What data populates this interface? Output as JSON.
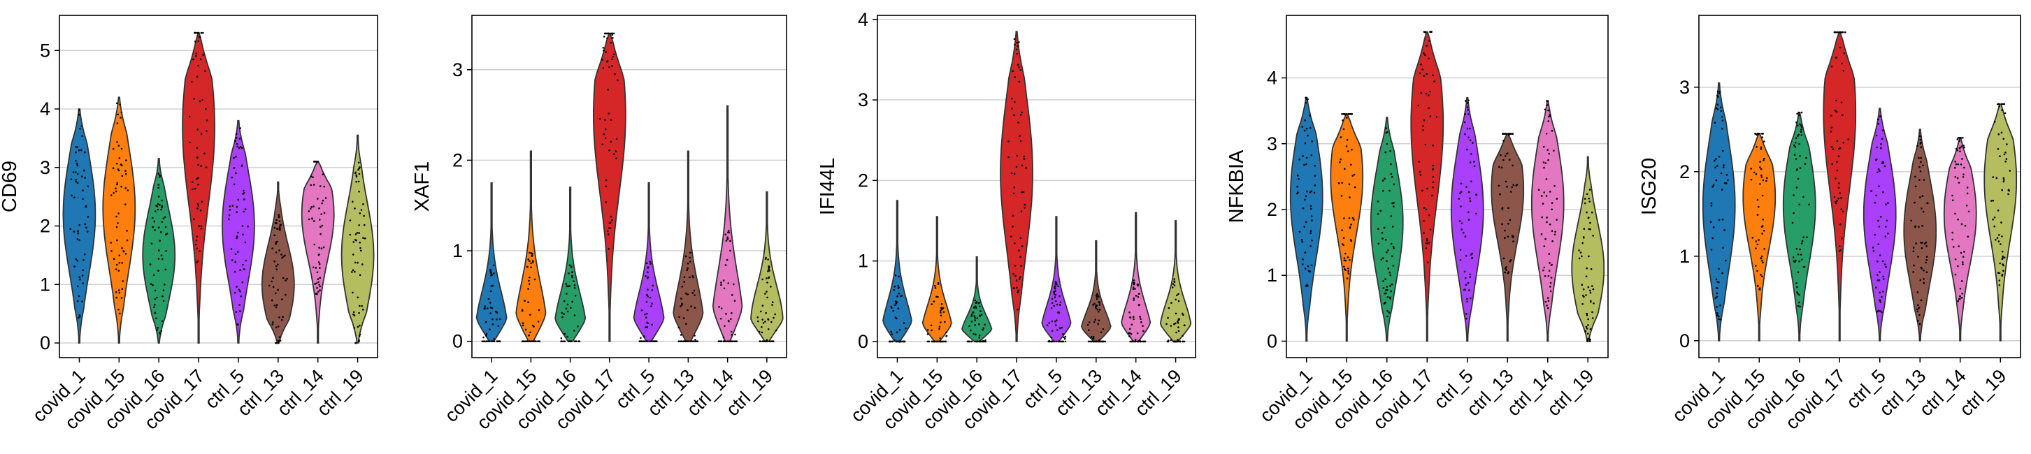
{
  "colors": {
    "covid_1": "#1f77b4",
    "covid_15": "#ff7f0e",
    "covid_16": "#279e68",
    "covid_17": "#d62728",
    "ctrl_5": "#aa40fc",
    "ctrl_13": "#8c564b",
    "ctrl_14": "#e377c2",
    "ctrl_19": "#b5bd61"
  },
  "chart_data": [
    {
      "type": "violin",
      "ylabel": "CD69",
      "categories": [
        "covid_1",
        "covid_15",
        "covid_16",
        "covid_17",
        "ctrl_5",
        "ctrl_13",
        "ctrl_14",
        "ctrl_19"
      ],
      "yticks": [
        0,
        1,
        2,
        3,
        4,
        5
      ],
      "ylim": [
        -0.25,
        5.6
      ],
      "grid": true,
      "series": [
        {
          "category": "covid_1",
          "min": 0,
          "max": 4.0,
          "median": 2.2
        },
        {
          "category": "covid_15",
          "min": 0,
          "max": 4.2,
          "median": 2.3
        },
        {
          "category": "covid_16",
          "min": 0,
          "max": 3.15,
          "median": 1.5
        },
        {
          "category": "covid_17",
          "min": 0,
          "max": 5.3,
          "median": 3.7
        },
        {
          "category": "ctrl_5",
          "min": 0,
          "max": 3.8,
          "median": 2.0
        },
        {
          "category": "ctrl_13",
          "min": 0,
          "max": 2.75,
          "median": 1.0
        },
        {
          "category": "ctrl_14",
          "min": 0,
          "max": 3.1,
          "median": 2.2
        },
        {
          "category": "ctrl_19",
          "min": 0,
          "max": 3.55,
          "median": 1.5
        }
      ]
    },
    {
      "type": "violin",
      "ylabel": "XAF1",
      "categories": [
        "covid_1",
        "covid_15",
        "covid_16",
        "covid_17",
        "ctrl_5",
        "ctrl_13",
        "ctrl_14",
        "ctrl_19"
      ],
      "yticks": [
        0,
        1,
        2,
        3
      ],
      "ylim": [
        -0.18,
        3.6
      ],
      "grid": true,
      "series": [
        {
          "category": "covid_1",
          "min": 0,
          "max": 1.75,
          "median": 0.1
        },
        {
          "category": "covid_15",
          "min": 0,
          "max": 2.1,
          "median": 0.1
        },
        {
          "category": "covid_16",
          "min": 0,
          "max": 1.7,
          "median": 0.1
        },
        {
          "category": "covid_17",
          "min": 0,
          "max": 3.4,
          "median": 2.5
        },
        {
          "category": "ctrl_5",
          "min": 0,
          "max": 1.75,
          "median": 0.1
        },
        {
          "category": "ctrl_13",
          "min": 0,
          "max": 2.1,
          "median": 0.1
        },
        {
          "category": "ctrl_14",
          "min": 0,
          "max": 2.6,
          "median": 0.1
        },
        {
          "category": "ctrl_19",
          "min": 0,
          "max": 1.65,
          "median": 0.2
        }
      ]
    },
    {
      "type": "violin",
      "ylabel": "IFI44L",
      "categories": [
        "covid_1",
        "covid_15",
        "covid_16",
        "covid_17",
        "ctrl_5",
        "ctrl_13",
        "ctrl_14",
        "ctrl_19"
      ],
      "yticks": [
        0,
        1,
        2,
        3,
        4
      ],
      "ylim": [
        -0.2,
        4.05
      ],
      "grid": true,
      "series": [
        {
          "category": "covid_1",
          "min": 0,
          "max": 1.75,
          "median": 0.05
        },
        {
          "category": "covid_15",
          "min": 0,
          "max": 1.55,
          "median": 0.05
        },
        {
          "category": "covid_16",
          "min": 0,
          "max": 1.05,
          "median": 0.05
        },
        {
          "category": "covid_17",
          "min": 0,
          "max": 3.85,
          "median": 2.1
        },
        {
          "category": "ctrl_5",
          "min": 0,
          "max": 1.55,
          "median": 0.05
        },
        {
          "category": "ctrl_13",
          "min": 0,
          "max": 1.25,
          "median": 0.05
        },
        {
          "category": "ctrl_14",
          "min": 0,
          "max": 1.6,
          "median": 0.05
        },
        {
          "category": "ctrl_19",
          "min": 0,
          "max": 1.5,
          "median": 0.1
        }
      ]
    },
    {
      "type": "violin",
      "ylabel": "NFKBIA",
      "categories": [
        "covid_1",
        "covid_15",
        "covid_16",
        "covid_17",
        "ctrl_5",
        "ctrl_13",
        "ctrl_14",
        "ctrl_19"
      ],
      "yticks": [
        0,
        1,
        2,
        3,
        4
      ],
      "ylim": [
        -0.25,
        4.95
      ],
      "grid": true,
      "series": [
        {
          "category": "covid_1",
          "min": 0,
          "max": 3.7,
          "median": 2.2
        },
        {
          "category": "covid_15",
          "min": 0,
          "max": 3.45,
          "median": 2.5
        },
        {
          "category": "covid_16",
          "min": 0,
          "max": 3.4,
          "median": 1.8
        },
        {
          "category": "covid_17",
          "min": 0,
          "max": 4.7,
          "median": 3.3
        },
        {
          "category": "ctrl_5",
          "min": 0,
          "max": 3.7,
          "median": 2.0
        },
        {
          "category": "ctrl_13",
          "min": 0,
          "max": 3.15,
          "median": 2.3
        },
        {
          "category": "ctrl_14",
          "min": 0,
          "max": 3.65,
          "median": 2.1
        },
        {
          "category": "ctrl_19",
          "min": 0,
          "max": 2.8,
          "median": 1.1
        }
      ]
    },
    {
      "type": "violin",
      "ylabel": "ISG20",
      "categories": [
        "covid_1",
        "covid_15",
        "covid_16",
        "covid_17",
        "ctrl_5",
        "ctrl_13",
        "ctrl_14",
        "ctrl_19"
      ],
      "yticks": [
        0,
        1,
        2,
        3
      ],
      "ylim": [
        -0.2,
        3.85
      ],
      "grid": true,
      "series": [
        {
          "category": "covid_1",
          "min": 0,
          "max": 3.05,
          "median": 1.6
        },
        {
          "category": "covid_15",
          "min": 0,
          "max": 2.45,
          "median": 1.7
        },
        {
          "category": "covid_16",
          "min": 0,
          "max": 2.7,
          "median": 1.6
        },
        {
          "category": "covid_17",
          "min": 0,
          "max": 3.65,
          "median": 2.7
        },
        {
          "category": "ctrl_5",
          "min": 0,
          "max": 2.75,
          "median": 1.5
        },
        {
          "category": "ctrl_13",
          "min": 0,
          "max": 2.5,
          "median": 1.3
        },
        {
          "category": "ctrl_14",
          "min": 0,
          "max": 2.4,
          "median": 1.5
        },
        {
          "category": "ctrl_19",
          "min": 0,
          "max": 2.8,
          "median": 1.9
        }
      ]
    }
  ]
}
